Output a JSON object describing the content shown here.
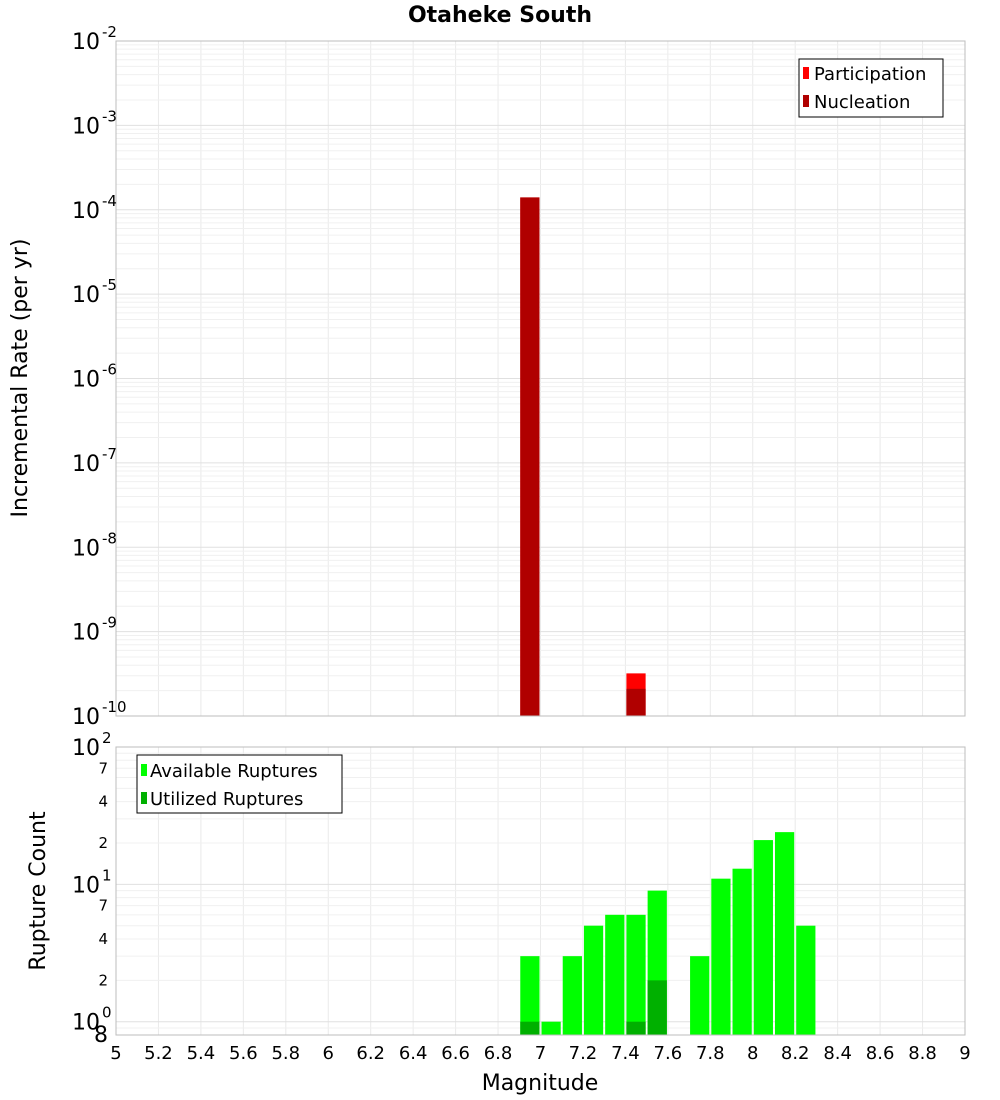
{
  "chart_data": [
    {
      "type": "bar",
      "title": "Otaheke South",
      "xlabel": "",
      "ylabel": "Incremental Rate (per yr)",
      "xlim": [
        5,
        9
      ],
      "ylim": [
        1e-10,
        0.01
      ],
      "yscale": "log",
      "grid": true,
      "legend_position": "top-right",
      "y_tick_exponents": [
        "-10",
        "-9",
        "-8",
        "-7",
        "-6",
        "-5",
        "-4",
        "-3",
        "-2"
      ],
      "y_tick_base": "10",
      "legend": [
        {
          "name": "Participation",
          "color": "#ff0000"
        },
        {
          "name": "Nucleation",
          "color": "#b00000"
        }
      ],
      "bar_width": 0.1,
      "series": [
        {
          "name": "Participation",
          "color": "#ff0000",
          "points": [
            {
              "x": 6.95,
              "y": 0.00014
            },
            {
              "x": 7.45,
              "y": 3.2e-10
            }
          ]
        },
        {
          "name": "Nucleation",
          "color": "#b00000",
          "points": [
            {
              "x": 6.95,
              "y": 0.00014
            },
            {
              "x": 7.45,
              "y": 2.1e-10
            }
          ]
        }
      ]
    },
    {
      "type": "bar",
      "title": "",
      "xlabel": "Magnitude",
      "ylabel": "Rupture Count",
      "xlim": [
        5,
        9
      ],
      "ylim": [
        0.8,
        100
      ],
      "yscale": "log",
      "grid": true,
      "legend_position": "top-left",
      "y_tick_exponents": [
        "0",
        "1",
        "2"
      ],
      "y_tick_base": "10",
      "y_minor_labels": [
        "2",
        "4",
        "7",
        "2",
        "4",
        "7"
      ],
      "y_minor_values": [
        2,
        4,
        7,
        20,
        40,
        70
      ],
      "y_bottom_label": "8",
      "x_ticks": [
        "5",
        "5.2",
        "5.4",
        "5.6",
        "5.8",
        "6",
        "6.2",
        "6.4",
        "6.6",
        "6.8",
        "7",
        "7.2",
        "7.4",
        "7.6",
        "7.8",
        "8",
        "8.2",
        "8.4",
        "8.6",
        "8.8",
        "9"
      ],
      "legend": [
        {
          "name": "Available Ruptures",
          "color": "#00ff00"
        },
        {
          "name": "Utilized Ruptures",
          "color": "#00b000"
        }
      ],
      "bar_width": 0.1,
      "series": [
        {
          "name": "Available Ruptures",
          "color": "#00ff00",
          "points": [
            {
              "x": 6.95,
              "y": 3
            },
            {
              "x": 7.05,
              "y": 1
            },
            {
              "x": 7.15,
              "y": 3
            },
            {
              "x": 7.25,
              "y": 5
            },
            {
              "x": 7.35,
              "y": 6
            },
            {
              "x": 7.45,
              "y": 6
            },
            {
              "x": 7.55,
              "y": 9
            },
            {
              "x": 7.75,
              "y": 3
            },
            {
              "x": 7.85,
              "y": 11
            },
            {
              "x": 7.95,
              "y": 13
            },
            {
              "x": 8.05,
              "y": 21
            },
            {
              "x": 8.15,
              "y": 24
            },
            {
              "x": 8.25,
              "y": 5
            }
          ]
        },
        {
          "name": "Utilized Ruptures",
          "color": "#00b000",
          "points": [
            {
              "x": 6.95,
              "y": 1
            },
            {
              "x": 7.45,
              "y": 1
            },
            {
              "x": 7.55,
              "y": 2
            }
          ]
        }
      ]
    }
  ]
}
